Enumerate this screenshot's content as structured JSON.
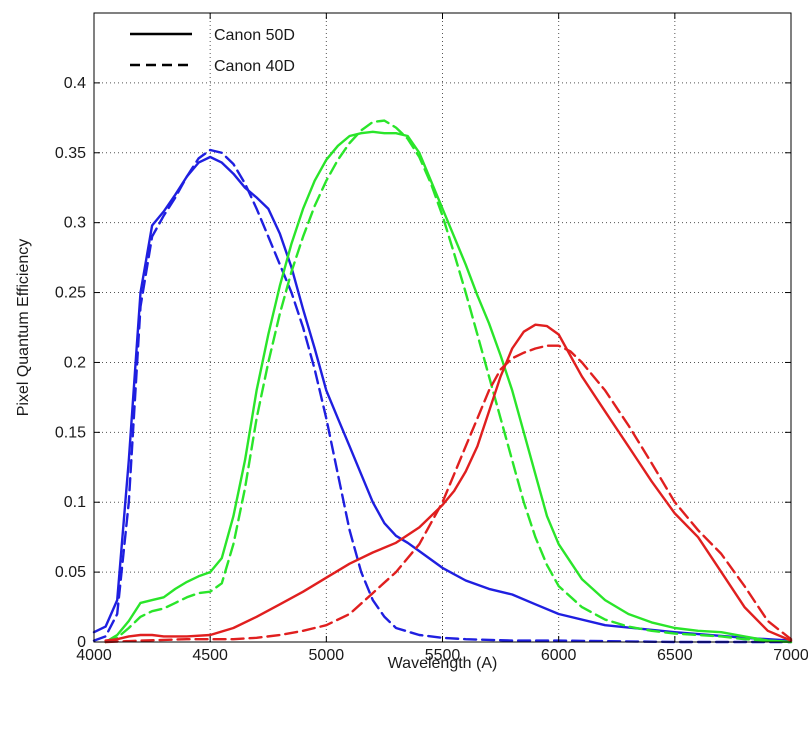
{
  "chart_data": {
    "type": "line",
    "title": "",
    "xlabel": "Wavelength (A)",
    "ylabel": "Pixel Quantum Efficiency",
    "xlim": [
      4000,
      7000
    ],
    "ylim": [
      0,
      0.45
    ],
    "xticks": [
      4000,
      4500,
      5000,
      5500,
      6000,
      6500,
      7000
    ],
    "yticks": [
      0,
      0.05,
      0.1,
      0.15,
      0.2,
      0.25,
      0.3,
      0.35,
      0.4
    ],
    "ytick_labels": [
      "0",
      "0.05",
      "0.1",
      "0.15",
      "0.2",
      "0.25",
      "0.3",
      "0.35",
      "0.4"
    ],
    "grid": "dotted",
    "legend": {
      "position": "top-left",
      "entries": [
        {
          "label": "Canon 50D",
          "style": "solid"
        },
        {
          "label": "Canon 40D",
          "style": "dashed"
        }
      ]
    },
    "series": [
      {
        "name": "Canon 50D blue",
        "camera": "Canon 50D",
        "channel": "blue",
        "color": "#1f1fe0",
        "style": "solid",
        "x": [
          4000,
          4050,
          4100,
          4150,
          4200,
          4250,
          4300,
          4350,
          4400,
          4450,
          4500,
          4550,
          4600,
          4650,
          4700,
          4750,
          4800,
          4850,
          4900,
          4950,
          5000,
          5050,
          5100,
          5150,
          5200,
          5250,
          5300,
          5350,
          5400,
          5500,
          5600,
          5700,
          5800,
          5900,
          6000,
          6200,
          6500,
          6800,
          7000
        ],
        "y": [
          0.007,
          0.011,
          0.03,
          0.13,
          0.25,
          0.298,
          0.308,
          0.32,
          0.333,
          0.343,
          0.347,
          0.343,
          0.335,
          0.325,
          0.318,
          0.31,
          0.292,
          0.268,
          0.238,
          0.21,
          0.18,
          0.16,
          0.14,
          0.12,
          0.1,
          0.085,
          0.076,
          0.071,
          0.065,
          0.053,
          0.044,
          0.038,
          0.034,
          0.027,
          0.02,
          0.012,
          0.007,
          0.003,
          0.001
        ]
      },
      {
        "name": "Canon 40D blue",
        "camera": "Canon 40D",
        "channel": "blue",
        "color": "#1f1fe0",
        "style": "dashed",
        "x": [
          4000,
          4050,
          4100,
          4150,
          4200,
          4250,
          4300,
          4350,
          4400,
          4450,
          4500,
          4550,
          4600,
          4650,
          4700,
          4750,
          4800,
          4850,
          4900,
          4950,
          5000,
          5050,
          5100,
          5150,
          5200,
          5250,
          5300,
          5400,
          5500,
          5600,
          5800,
          6000,
          6500,
          7000
        ],
        "y": [
          0.001,
          0.004,
          0.02,
          0.1,
          0.24,
          0.29,
          0.305,
          0.318,
          0.333,
          0.346,
          0.352,
          0.35,
          0.342,
          0.328,
          0.31,
          0.29,
          0.27,
          0.25,
          0.225,
          0.195,
          0.16,
          0.12,
          0.08,
          0.05,
          0.03,
          0.018,
          0.01,
          0.005,
          0.003,
          0.002,
          0.001,
          0.001,
          0.0,
          0.0
        ]
      },
      {
        "name": "Canon 50D green",
        "camera": "Canon 50D",
        "channel": "green",
        "color": "#2ae52a",
        "style": "solid",
        "x": [
          4050,
          4100,
          4150,
          4200,
          4250,
          4300,
          4350,
          4400,
          4450,
          4500,
          4550,
          4600,
          4650,
          4700,
          4750,
          4800,
          4850,
          4900,
          4950,
          5000,
          5050,
          5100,
          5150,
          5200,
          5250,
          5300,
          5350,
          5400,
          5450,
          5500,
          5550,
          5600,
          5650,
          5700,
          5750,
          5800,
          5850,
          5900,
          5950,
          6000,
          6100,
          6200,
          6300,
          6400,
          6500,
          6600,
          6700,
          6800,
          6900,
          7000
        ],
        "y": [
          0.0,
          0.005,
          0.015,
          0.028,
          0.03,
          0.032,
          0.038,
          0.043,
          0.047,
          0.05,
          0.06,
          0.09,
          0.13,
          0.18,
          0.22,
          0.255,
          0.285,
          0.31,
          0.33,
          0.345,
          0.355,
          0.362,
          0.364,
          0.365,
          0.364,
          0.364,
          0.362,
          0.35,
          0.33,
          0.31,
          0.29,
          0.27,
          0.248,
          0.228,
          0.205,
          0.18,
          0.15,
          0.12,
          0.09,
          0.07,
          0.045,
          0.03,
          0.02,
          0.014,
          0.01,
          0.008,
          0.007,
          0.004,
          0.001,
          0.0
        ]
      },
      {
        "name": "Canon 40D green",
        "camera": "Canon 40D",
        "channel": "green",
        "color": "#2ae52a",
        "style": "dashed",
        "x": [
          4050,
          4100,
          4150,
          4200,
          4250,
          4300,
          4350,
          4400,
          4450,
          4500,
          4550,
          4600,
          4650,
          4700,
          4750,
          4800,
          4850,
          4900,
          4950,
          5000,
          5050,
          5100,
          5150,
          5200,
          5250,
          5300,
          5350,
          5400,
          5450,
          5500,
          5550,
          5600,
          5650,
          5700,
          5750,
          5800,
          5850,
          5900,
          5950,
          6000,
          6100,
          6200,
          6300,
          6400,
          6500,
          6600,
          6700,
          6800,
          6900,
          7000
        ],
        "y": [
          0.0,
          0.003,
          0.01,
          0.018,
          0.022,
          0.024,
          0.028,
          0.032,
          0.035,
          0.036,
          0.042,
          0.07,
          0.11,
          0.16,
          0.2,
          0.235,
          0.265,
          0.29,
          0.312,
          0.33,
          0.345,
          0.357,
          0.366,
          0.372,
          0.373,
          0.368,
          0.36,
          0.347,
          0.328,
          0.305,
          0.278,
          0.25,
          0.22,
          0.19,
          0.16,
          0.13,
          0.1,
          0.075,
          0.055,
          0.04,
          0.025,
          0.016,
          0.011,
          0.008,
          0.006,
          0.005,
          0.004,
          0.002,
          0.001,
          0.0
        ]
      },
      {
        "name": "Canon 50D red",
        "camera": "Canon 50D",
        "channel": "red",
        "color": "#e01f1f",
        "style": "solid",
        "x": [
          4050,
          4100,
          4150,
          4200,
          4250,
          4300,
          4400,
          4500,
          4600,
          4700,
          4800,
          4900,
          5000,
          5100,
          5200,
          5300,
          5400,
          5500,
          5550,
          5600,
          5650,
          5700,
          5750,
          5800,
          5850,
          5900,
          5950,
          6000,
          6050,
          6100,
          6200,
          6300,
          6400,
          6500,
          6600,
          6700,
          6800,
          6900,
          7000
        ],
        "y": [
          0.001,
          0.002,
          0.004,
          0.005,
          0.005,
          0.004,
          0.004,
          0.005,
          0.01,
          0.018,
          0.027,
          0.036,
          0.046,
          0.056,
          0.064,
          0.071,
          0.082,
          0.098,
          0.108,
          0.122,
          0.14,
          0.165,
          0.19,
          0.21,
          0.222,
          0.227,
          0.226,
          0.22,
          0.205,
          0.19,
          0.165,
          0.14,
          0.115,
          0.092,
          0.075,
          0.05,
          0.025,
          0.008,
          0.001
        ]
      },
      {
        "name": "Canon 40D red",
        "camera": "Canon 40D",
        "channel": "red",
        "color": "#e01f1f",
        "style": "dashed",
        "x": [
          4050,
          4200,
          4400,
          4600,
          4700,
          4800,
          4900,
          5000,
          5100,
          5200,
          5300,
          5400,
          5500,
          5550,
          5600,
          5650,
          5700,
          5750,
          5800,
          5850,
          5900,
          5950,
          6000,
          6050,
          6100,
          6200,
          6300,
          6400,
          6500,
          6600,
          6700,
          6800,
          6900,
          7000
        ],
        "y": [
          0.0,
          0.001,
          0.002,
          0.002,
          0.003,
          0.005,
          0.008,
          0.012,
          0.02,
          0.035,
          0.05,
          0.07,
          0.1,
          0.12,
          0.14,
          0.16,
          0.18,
          0.195,
          0.203,
          0.207,
          0.21,
          0.212,
          0.212,
          0.208,
          0.2,
          0.18,
          0.155,
          0.128,
          0.1,
          0.08,
          0.063,
          0.04,
          0.015,
          0.002
        ]
      }
    ]
  }
}
